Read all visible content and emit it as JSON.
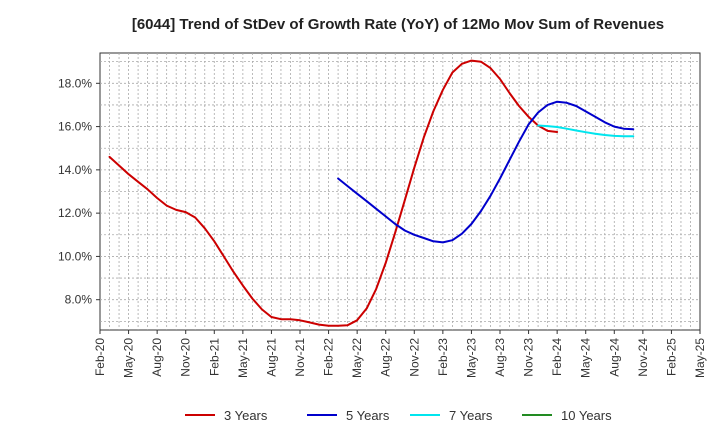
{
  "chart_data": {
    "type": "line",
    "title": "[6044]  Trend of StDev of Growth Rate (YoY) of 12Mo Mov Sum of Revenues",
    "xlabel": "",
    "ylabel": "",
    "ylim": [
      6.6,
      19.4
    ],
    "y_ticks": [
      8.0,
      10.0,
      12.0,
      14.0,
      16.0,
      18.0
    ],
    "y_tick_labels": [
      "8.0%",
      "10.0%",
      "12.0%",
      "14.0%",
      "16.0%",
      "18.0%"
    ],
    "x_tick_labels": [
      "Feb-20",
      "May-20",
      "Aug-20",
      "Nov-20",
      "Feb-21",
      "May-21",
      "Aug-21",
      "Nov-21",
      "Feb-22",
      "May-22",
      "Aug-22",
      "Nov-22",
      "Feb-23",
      "May-23",
      "Aug-23",
      "Nov-23",
      "Feb-24",
      "May-24",
      "Aug-24",
      "Nov-24",
      "Feb-25",
      "May-25"
    ],
    "grid": true,
    "legend_position": "bottom",
    "series": [
      {
        "name": "3 Years",
        "color": "#cc0000",
        "points": [
          [
            1,
            14.6
          ],
          [
            2,
            14.2
          ],
          [
            3,
            13.8
          ],
          [
            4,
            13.45
          ],
          [
            5,
            13.1
          ],
          [
            6,
            12.7
          ],
          [
            7,
            12.35
          ],
          [
            8,
            12.15
          ],
          [
            9,
            12.05
          ],
          [
            10,
            11.8
          ],
          [
            11,
            11.3
          ],
          [
            12,
            10.7
          ],
          [
            13,
            10.0
          ],
          [
            14,
            9.3
          ],
          [
            15,
            8.65
          ],
          [
            16,
            8.05
          ],
          [
            17,
            7.55
          ],
          [
            18,
            7.2
          ],
          [
            19,
            7.1
          ],
          [
            20,
            7.1
          ],
          [
            21,
            7.05
          ],
          [
            22,
            6.95
          ],
          [
            23,
            6.85
          ],
          [
            24,
            6.8
          ],
          [
            25,
            6.8
          ],
          [
            26,
            6.82
          ],
          [
            27,
            7.05
          ],
          [
            28,
            7.6
          ],
          [
            29,
            8.5
          ],
          [
            30,
            9.7
          ],
          [
            31,
            11.1
          ],
          [
            32,
            12.6
          ],
          [
            33,
            14.1
          ],
          [
            34,
            15.5
          ],
          [
            35,
            16.7
          ],
          [
            36,
            17.7
          ],
          [
            37,
            18.5
          ],
          [
            38,
            18.9
          ],
          [
            39,
            19.05
          ],
          [
            40,
            19.0
          ],
          [
            41,
            18.7
          ],
          [
            42,
            18.2
          ],
          [
            43,
            17.55
          ],
          [
            44,
            16.95
          ],
          [
            45,
            16.45
          ],
          [
            46,
            16.05
          ],
          [
            47,
            15.8
          ],
          [
            48,
            15.75
          ]
        ]
      },
      {
        "name": "5 Years",
        "color": "#0000cc",
        "points": [
          [
            25,
            13.6
          ],
          [
            26,
            13.25
          ],
          [
            27,
            12.9
          ],
          [
            28,
            12.55
          ],
          [
            29,
            12.2
          ],
          [
            30,
            11.85
          ],
          [
            31,
            11.5
          ],
          [
            32,
            11.2
          ],
          [
            33,
            11.0
          ],
          [
            34,
            10.85
          ],
          [
            35,
            10.7
          ],
          [
            36,
            10.65
          ],
          [
            37,
            10.75
          ],
          [
            38,
            11.05
          ],
          [
            39,
            11.5
          ],
          [
            40,
            12.1
          ],
          [
            41,
            12.8
          ],
          [
            42,
            13.6
          ],
          [
            43,
            14.45
          ],
          [
            44,
            15.3
          ],
          [
            45,
            16.1
          ],
          [
            46,
            16.65
          ],
          [
            47,
            17.0
          ],
          [
            48,
            17.15
          ],
          [
            49,
            17.1
          ],
          [
            50,
            16.95
          ],
          [
            51,
            16.7
          ],
          [
            52,
            16.45
          ],
          [
            53,
            16.2
          ],
          [
            54,
            16.0
          ],
          [
            55,
            15.9
          ],
          [
            56,
            15.88
          ]
        ]
      },
      {
        "name": "7 Years",
        "color": "#00e5ee",
        "points": [
          [
            46,
            16.05
          ],
          [
            47,
            16.02
          ],
          [
            48,
            15.98
          ],
          [
            49,
            15.9
          ],
          [
            50,
            15.82
          ],
          [
            51,
            15.74
          ],
          [
            52,
            15.67
          ],
          [
            53,
            15.61
          ],
          [
            54,
            15.57
          ],
          [
            55,
            15.55
          ],
          [
            56,
            15.55
          ]
        ]
      },
      {
        "name": "10 Years",
        "color": "#228b22",
        "points": []
      }
    ]
  }
}
